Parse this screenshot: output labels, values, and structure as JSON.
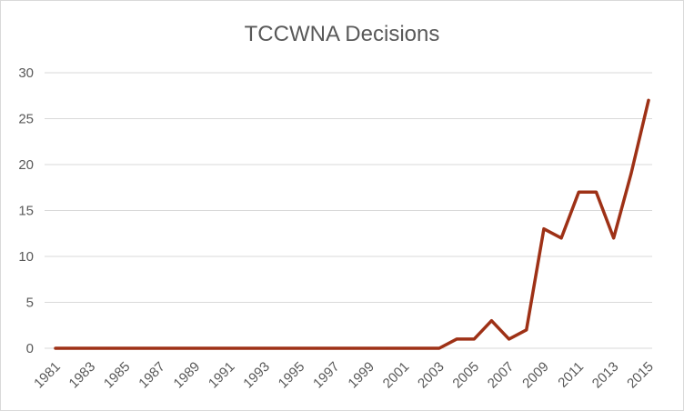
{
  "chart_data": {
    "type": "line",
    "title": "TCCWNA Decisions",
    "xlabel": "",
    "ylabel": "",
    "x": [
      1981,
      1982,
      1983,
      1984,
      1985,
      1986,
      1987,
      1988,
      1989,
      1990,
      1991,
      1992,
      1993,
      1994,
      1995,
      1996,
      1997,
      1998,
      1999,
      2000,
      2001,
      2002,
      2003,
      2004,
      2005,
      2006,
      2007,
      2008,
      2009,
      2010,
      2011,
      2012,
      2013,
      2014,
      2015
    ],
    "x_tick_labels": [
      "1981",
      "1983",
      "1985",
      "1987",
      "1989",
      "1991",
      "1993",
      "1995",
      "1997",
      "1999",
      "2001",
      "2003",
      "2005",
      "2007",
      "2009",
      "2011",
      "2013",
      "2015"
    ],
    "series": [
      {
        "values": [
          0,
          0,
          0,
          0,
          0,
          0,
          0,
          0,
          0,
          0,
          0,
          0,
          0,
          0,
          0,
          0,
          0,
          0,
          0,
          0,
          0,
          0,
          0,
          1,
          1,
          3,
          1,
          2,
          13,
          12,
          17,
          17,
          12,
          19,
          27
        ],
        "color": "#9e3116"
      }
    ],
    "ylim": [
      0,
      30
    ],
    "y_ticks": [
      0,
      5,
      10,
      15,
      20,
      25,
      30
    ],
    "grid": true,
    "legend": "none"
  }
}
